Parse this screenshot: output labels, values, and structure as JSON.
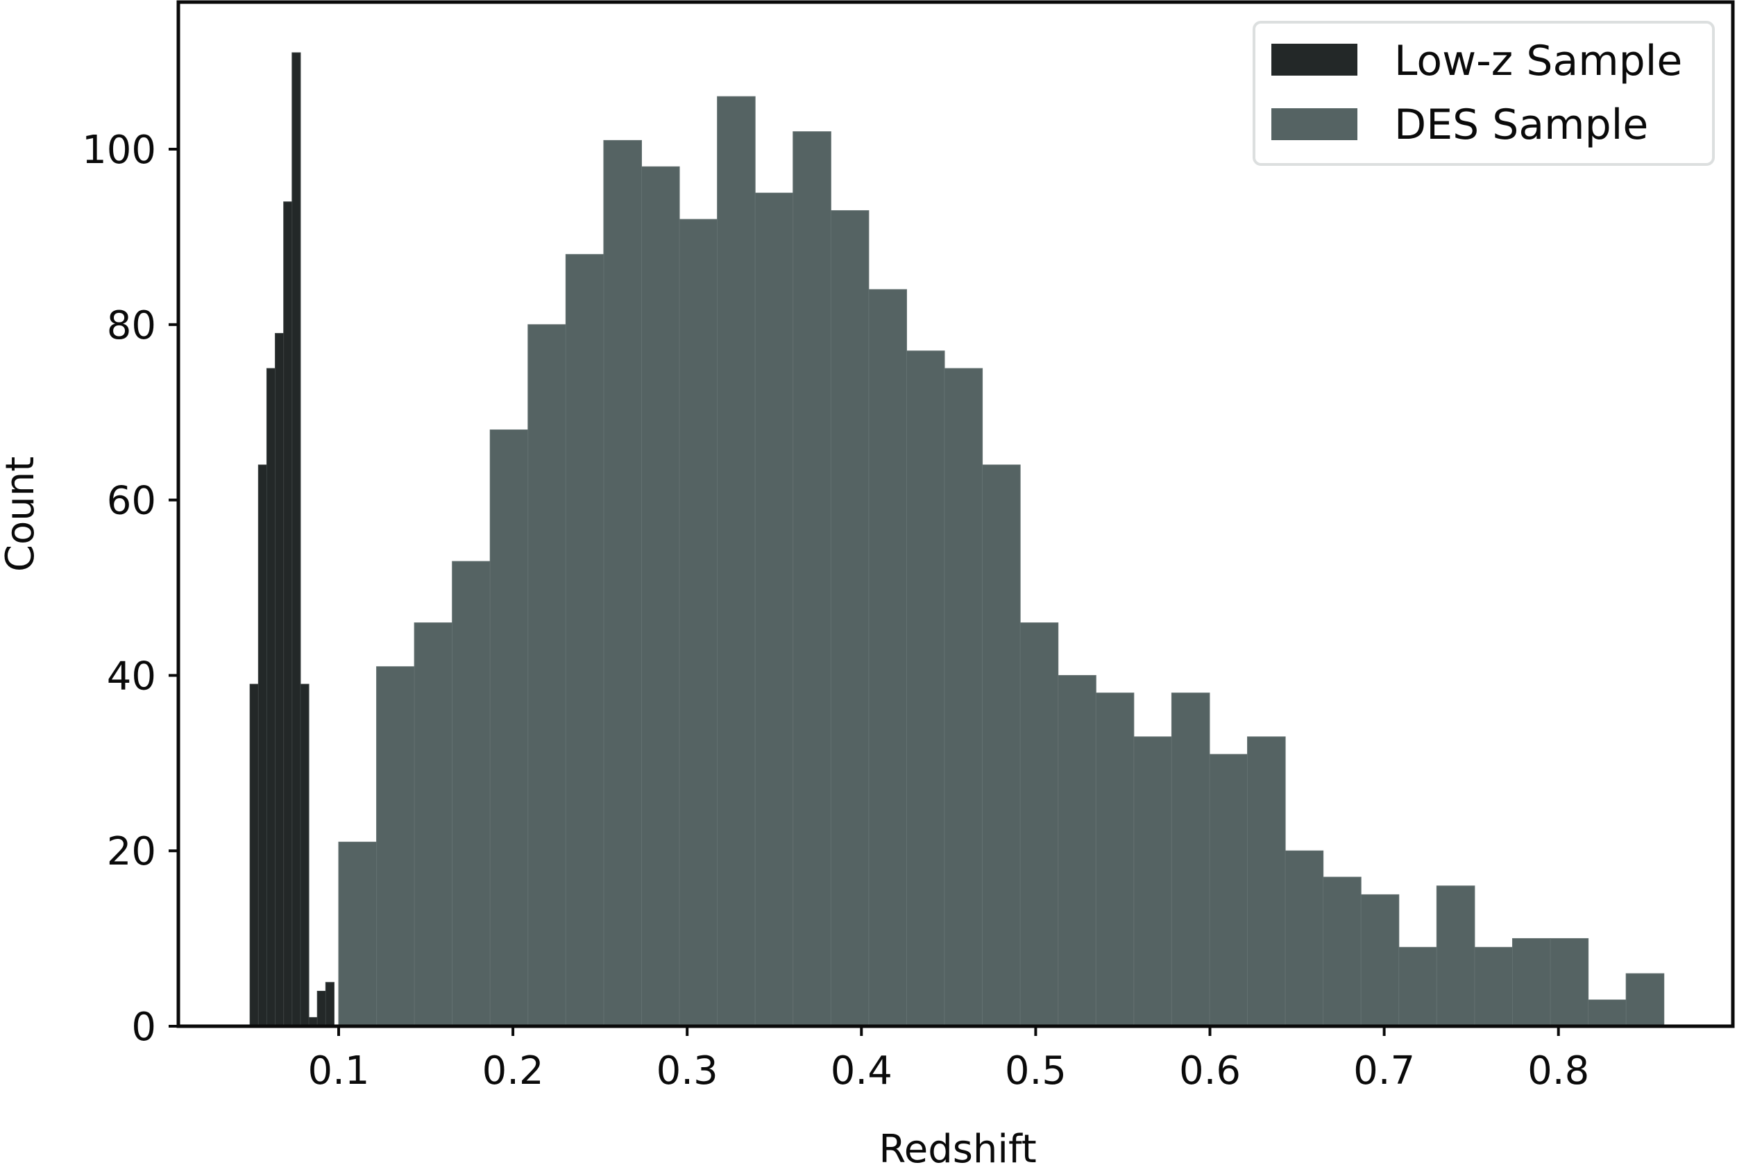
{
  "chart_data": {
    "type": "bar",
    "subtype": "histogram",
    "title": "",
    "xlabel": "Redshift",
    "ylabel": "Count",
    "xlim": [
      0.01,
      0.885
    ],
    "ylim": [
      0,
      117
    ],
    "x_ticks": [
      0.1,
      0.2,
      0.3,
      0.4,
      0.5,
      0.6,
      0.7,
      0.8
    ],
    "x_tick_labels": [
      "0.1",
      "0.2",
      "0.3",
      "0.4",
      "0.5",
      "0.6",
      "0.7",
      "0.8"
    ],
    "y_ticks": [
      0,
      20,
      40,
      60,
      80,
      100
    ],
    "y_tick_labels": [
      "0",
      "20",
      "40",
      "60",
      "80",
      "100"
    ],
    "grid": false,
    "legend_position": "upper right",
    "series": [
      {
        "name": "Low-z Sample",
        "color": "#232828",
        "bin_start": 0.0491,
        "bin_width": 0.00483,
        "values": [
          39,
          64,
          75,
          79,
          94,
          111,
          39,
          1,
          4,
          5
        ]
      },
      {
        "name": "DES Sample",
        "color": "#556363",
        "bin_start": 0.1,
        "bin_width": 0.02173,
        "values": [
          21,
          41,
          46,
          53,
          68,
          80,
          88,
          101,
          98,
          92,
          106,
          95,
          102,
          93,
          84,
          77,
          75,
          64,
          46,
          40,
          38,
          33,
          38,
          31,
          33,
          20,
          17,
          15,
          9,
          16,
          9,
          10,
          10,
          3,
          6
        ]
      }
    ]
  },
  "legend": {
    "items": [
      {
        "label": "Low-z Sample",
        "color": "#232828"
      },
      {
        "label": "DES Sample",
        "color": "#556363"
      }
    ]
  },
  "axes": {
    "xlabel": "Redshift",
    "ylabel": "Count"
  }
}
